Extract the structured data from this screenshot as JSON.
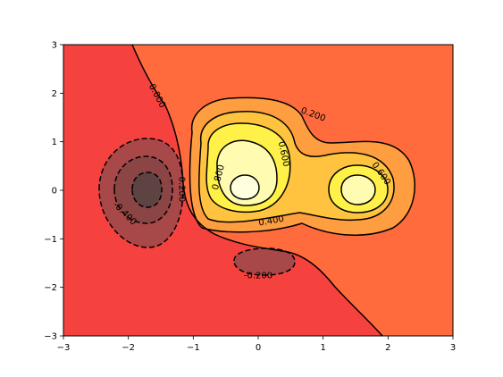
{
  "chart_data": {
    "type": "contour",
    "title": "",
    "xlabel": "",
    "ylabel": "",
    "xlim": [
      -3,
      3
    ],
    "ylim": [
      -3,
      3
    ],
    "x_ticks": [
      "−3",
      "−2",
      "−1",
      "0",
      "1",
      "2",
      "3"
    ],
    "y_ticks": [
      "−3",
      "−2",
      "−1",
      "0",
      "1",
      "2",
      "3"
    ],
    "grid": false,
    "legend": "none",
    "colormap": "hot",
    "contour_levels": [
      -0.6,
      -0.4,
      -0.2,
      0.0,
      0.2,
      0.4,
      0.6,
      0.8,
      1.0
    ],
    "negative_linestyle": "dashed",
    "contour_labels": [
      {
        "text": "0.000",
        "x": -1.55,
        "y": 1.95
      },
      {
        "text": "0.200",
        "x": 0.85,
        "y": 1.57
      },
      {
        "text": "0.600",
        "x": 0.4,
        "y": 0.75
      },
      {
        "text": "0.600",
        "x": 1.9,
        "y": 0.35
      },
      {
        "text": "0.800",
        "x": -0.62,
        "y": 0.27
      },
      {
        "text": "0.200",
        "x": -1.17,
        "y": 0.02
      },
      {
        "text": "-0.400",
        "x": -2.05,
        "y": -0.47
      },
      {
        "text": "0.400",
        "x": 0.2,
        "y": -0.62
      },
      {
        "text": "-0.200",
        "x": 0.0,
        "y": -1.75
      }
    ]
  }
}
